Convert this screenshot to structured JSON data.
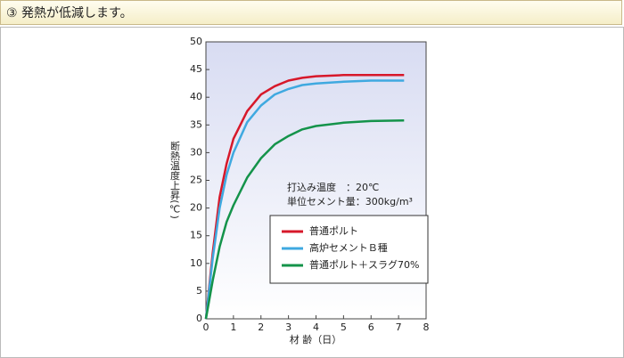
{
  "header": {
    "title": "③ 発熱が低減します。"
  },
  "chart_data": {
    "type": "line",
    "xlabel": "材 齢（日）",
    "ylabel": "断熱温度上昇(℃)",
    "annotations": [
      "打込み温度　：20℃",
      "単位セメント量：300kg/m³"
    ],
    "x": [
      0,
      0.25,
      0.5,
      0.75,
      1,
      1.5,
      2,
      2.5,
      3,
      3.5,
      4,
      5,
      6,
      7.2
    ],
    "series": [
      {
        "name": "普通ポルト",
        "color": "#d7182a",
        "values": [
          0,
          12,
          22,
          28,
          32.5,
          37.5,
          40.5,
          42,
          43,
          43.5,
          43.8,
          44,
          44,
          44
        ]
      },
      {
        "name": "高炉セメントＢ種",
        "color": "#3fa9e0",
        "values": [
          0,
          11,
          20,
          26,
          30,
          35.5,
          38.5,
          40.5,
          41.5,
          42.2,
          42.5,
          42.8,
          43,
          43
        ]
      },
      {
        "name": "普通ポルト＋スラグ70%",
        "color": "#14934a",
        "values": [
          0,
          7,
          13,
          17.5,
          20.5,
          25.5,
          29,
          31.5,
          33,
          34.2,
          34.8,
          35.4,
          35.7,
          35.8
        ]
      }
    ],
    "xlim": [
      0,
      8
    ],
    "xticks": [
      0,
      1,
      2,
      3,
      4,
      5,
      6,
      7,
      8
    ],
    "ylim": [
      0,
      50
    ],
    "yticks": [
      0,
      5,
      10,
      15,
      20,
      25,
      30,
      35,
      40,
      45,
      50
    ]
  }
}
